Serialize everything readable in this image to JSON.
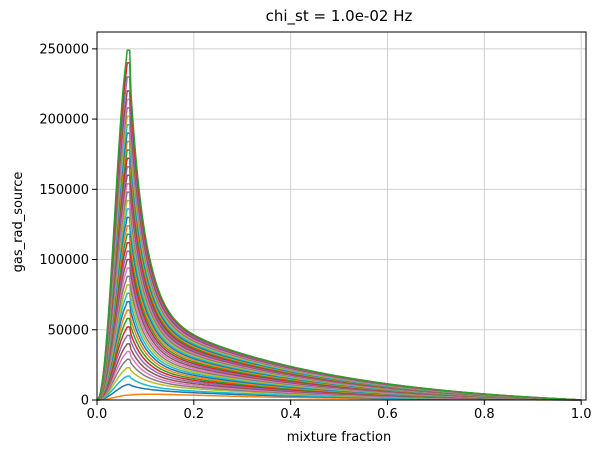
{
  "chart_data": {
    "type": "line",
    "title": "chi_st = 1.0e-02 Hz",
    "xlabel": "mixture fraction",
    "ylabel": "gas_rad_source",
    "xlim": [
      0.0,
      1.01
    ],
    "ylim": [
      0,
      262000
    ],
    "grid": true,
    "x_ticks": [
      {
        "value": 0.0,
        "label": "0.0"
      },
      {
        "value": 0.2,
        "label": "0.2"
      },
      {
        "value": 0.4,
        "label": "0.4"
      },
      {
        "value": 0.6,
        "label": "0.6"
      },
      {
        "value": 0.8,
        "label": "0.8"
      },
      {
        "value": 1.0,
        "label": "1.0"
      }
    ],
    "y_ticks": [
      {
        "value": 0,
        "label": "0"
      },
      {
        "value": 50000,
        "label": "50000"
      },
      {
        "value": 100000,
        "label": "100000"
      },
      {
        "value": 150000,
        "label": "150000"
      },
      {
        "value": 200000,
        "label": "200000"
      },
      {
        "value": 250000,
        "label": "250000"
      }
    ],
    "peak_x": 0.065,
    "series_shape": "each series rises from 0 at x=0 to a sharp peak near x=0.065, then decays toward 0 at x=1.0; tail at x=0.4 grows with peak height",
    "series_count": 40,
    "series": [
      {
        "peak": 3500,
        "tail_at_0.4": 3000
      },
      {
        "peak": 11000,
        "tail_at_0.4": 4500
      },
      {
        "peak": 17000,
        "tail_at_0.4": 5500
      },
      {
        "peak": 23000,
        "tail_at_0.4": 7000
      },
      {
        "peak": 29000,
        "tail_at_0.4": 8000
      },
      {
        "peak": 34500,
        "tail_at_0.4": 9000
      },
      {
        "peak": 40000,
        "tail_at_0.4": 10000
      },
      {
        "peak": 46000,
        "tail_at_0.4": 11000
      },
      {
        "peak": 52000,
        "tail_at_0.4": 12000
      },
      {
        "peak": 58000,
        "tail_at_0.4": 13000
      },
      {
        "peak": 64000,
        "tail_at_0.4": 14000
      },
      {
        "peak": 70000,
        "tail_at_0.4": 15000
      },
      {
        "peak": 76000,
        "tail_at_0.4": 16000
      },
      {
        "peak": 82000,
        "tail_at_0.4": 17000
      },
      {
        "peak": 88000,
        "tail_at_0.4": 18000
      },
      {
        "peak": 94000,
        "tail_at_0.4": 19000
      },
      {
        "peak": 100000,
        "tail_at_0.4": 20000
      },
      {
        "peak": 106000,
        "tail_at_0.4": 21000
      },
      {
        "peak": 112000,
        "tail_at_0.4": 22000
      },
      {
        "peak": 118000,
        "tail_at_0.4": 23000
      },
      {
        "peak": 124000,
        "tail_at_0.4": 24000
      },
      {
        "peak": 130000,
        "tail_at_0.4": 25000
      },
      {
        "peak": 136000,
        "tail_at_0.4": 25800
      },
      {
        "peak": 142000,
        "tail_at_0.4": 26600
      },
      {
        "peak": 148000,
        "tail_at_0.4": 27400
      },
      {
        "peak": 154000,
        "tail_at_0.4": 28200
      },
      {
        "peak": 160000,
        "tail_at_0.4": 29000
      },
      {
        "peak": 166000,
        "tail_at_0.4": 29800
      },
      {
        "peak": 172000,
        "tail_at_0.4": 30600
      },
      {
        "peak": 178000,
        "tail_at_0.4": 31400
      },
      {
        "peak": 184000,
        "tail_at_0.4": 32200
      },
      {
        "peak": 190000,
        "tail_at_0.4": 33000
      },
      {
        "peak": 196000,
        "tail_at_0.4": 33800
      },
      {
        "peak": 202000,
        "tail_at_0.4": 34600
      },
      {
        "peak": 208000,
        "tail_at_0.4": 35400
      },
      {
        "peak": 214000,
        "tail_at_0.4": 36200
      },
      {
        "peak": 220000,
        "tail_at_0.4": 37000
      },
      {
        "peak": 230000,
        "tail_at_0.4": 37800
      },
      {
        "peak": 240000,
        "tail_at_0.4": 38600
      },
      {
        "peak": 249000,
        "tail_at_0.4": 39000
      }
    ],
    "colors": [
      "#ff7f0e",
      "#1f77b4",
      "#17becf",
      "#bcbd22",
      "#7f7f7f",
      "#e377c2",
      "#8c564b",
      "#9467bd",
      "#d62728",
      "#2ca02c"
    ]
  }
}
